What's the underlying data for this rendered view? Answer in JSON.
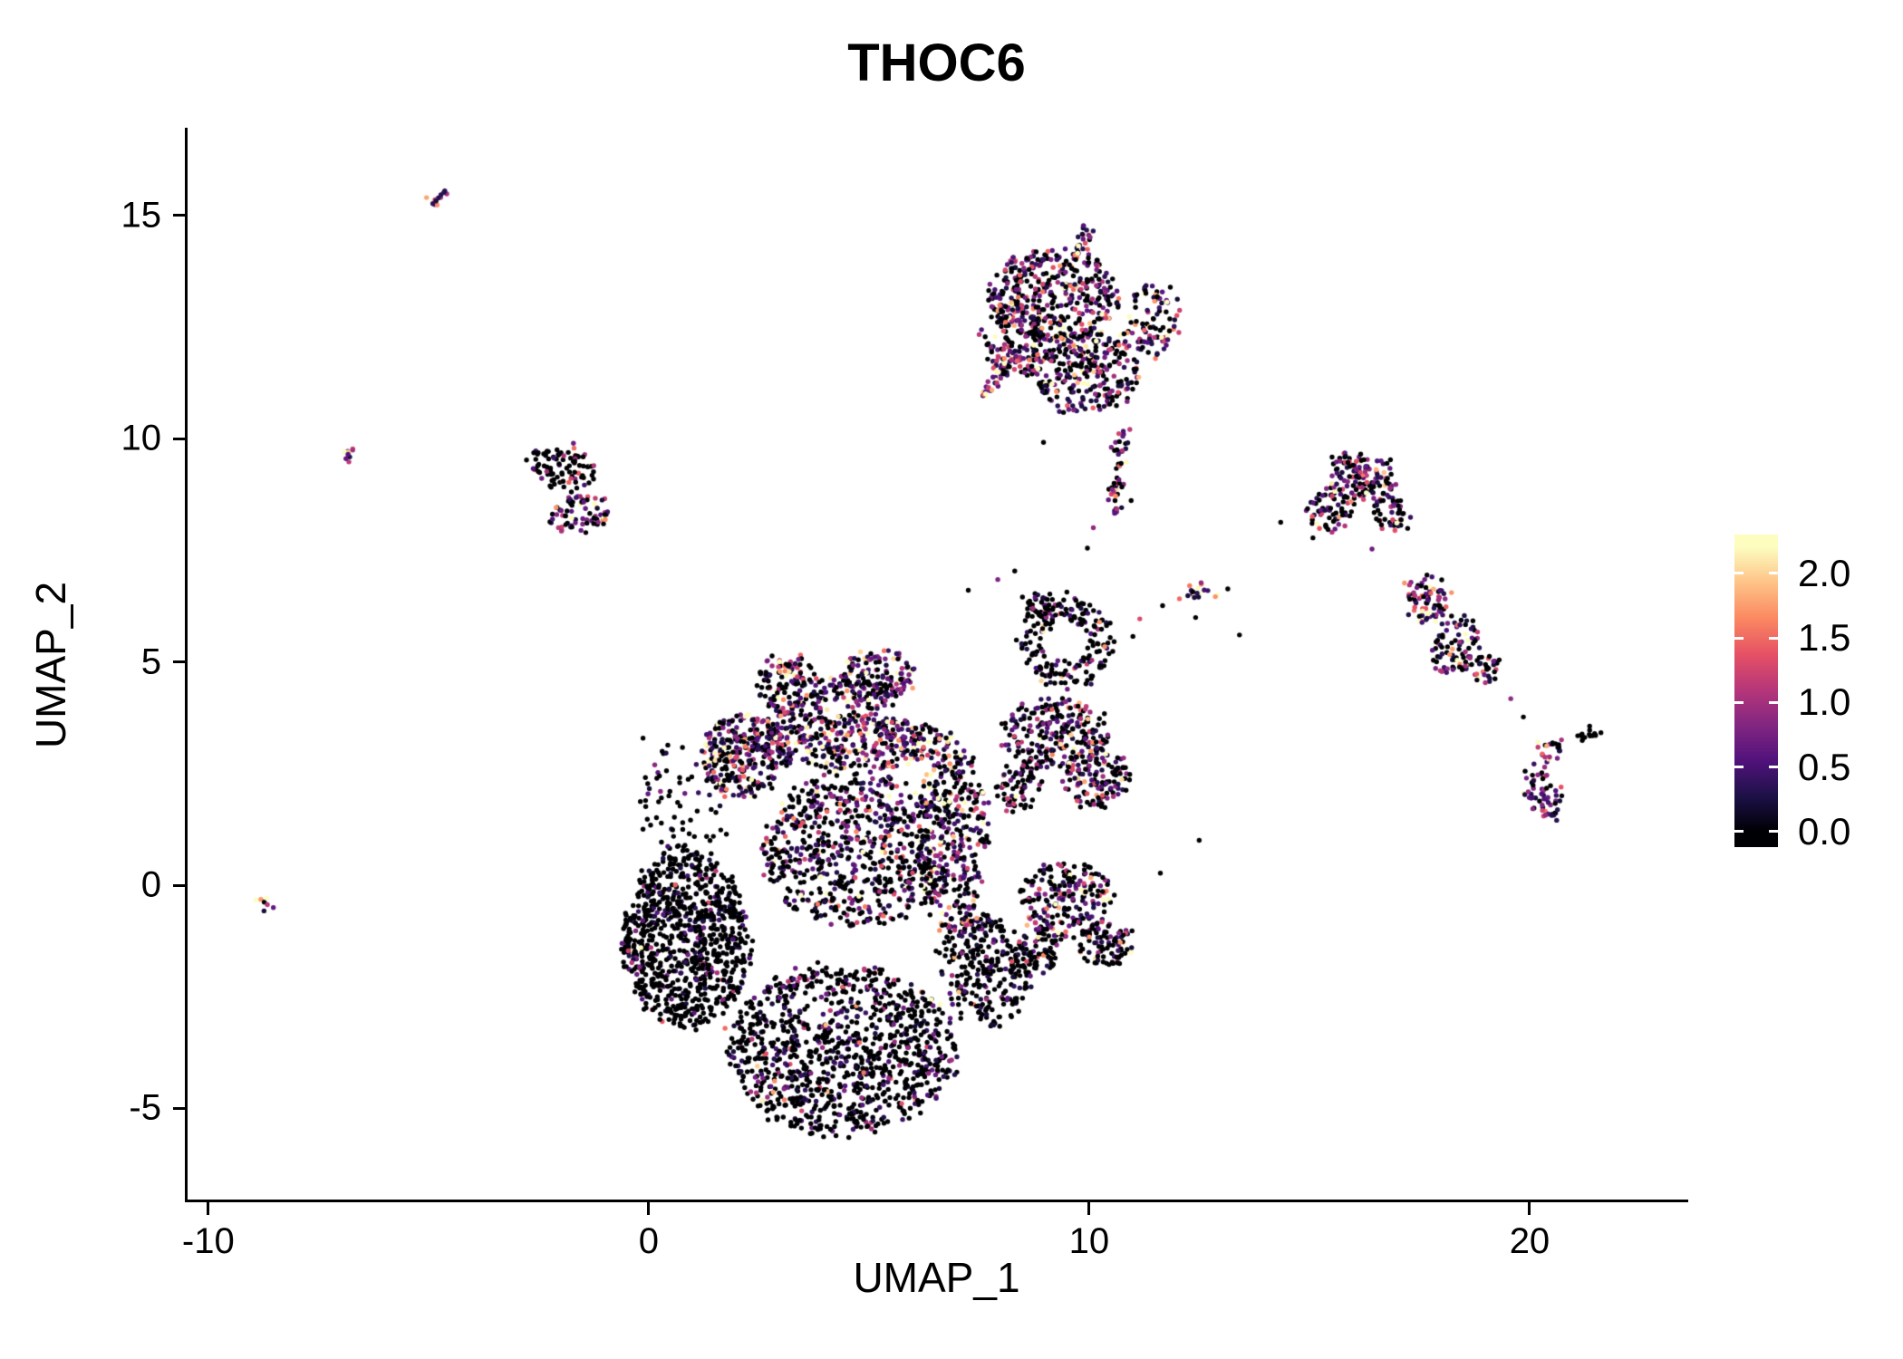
{
  "title": "THOC6",
  "colors": {
    "background": "#ffffff",
    "text": "#000000",
    "axis": "#000000"
  },
  "chart_data": {
    "type": "scatter",
    "title": "THOC6",
    "xlabel": "UMAP_1",
    "ylabel": "UMAP_2",
    "xlim": [
      -10.47,
      23.54
    ],
    "ylim": [
      -7.06,
      16.92
    ],
    "x_ticks": [
      "-10",
      "0",
      "10",
      "20"
    ],
    "y_ticks": [
      "-5",
      "0",
      "5",
      "10",
      "15"
    ],
    "grid": false,
    "point_radius_px": 2.7,
    "legend": {
      "position": "right",
      "ticks": [
        "2.0",
        "1.5",
        "1.0",
        "0.5",
        "0.0"
      ],
      "vmin": 0.0,
      "vmax": 2.2
    },
    "colormap": {
      "name": "magma",
      "stops": [
        "#000004",
        "#1d1147",
        "#51127c",
        "#822681",
        "#b63679",
        "#e65164",
        "#fb8861",
        "#fec287",
        "#fcfdbf"
      ]
    },
    "clusters": {
      "blobs": [
        {
          "name": "isolate-left-low",
          "cx": -8.72,
          "cy": -0.45,
          "rx": 0.14,
          "ry": 0.1,
          "rot": 0,
          "n": 7,
          "p0": 0.1,
          "m": 1.1
        },
        {
          "name": "left-island-top",
          "cx": -1.95,
          "cy": 9.35,
          "rx": 0.78,
          "ry": 0.5,
          "rot": -15,
          "n": 95,
          "p0": 0.72,
          "m": 0.8
        },
        {
          "name": "left-island-bottom",
          "cx": -1.55,
          "cy": 8.35,
          "rx": 0.82,
          "ry": 0.4,
          "rot": 8,
          "n": 75,
          "p0": 0.3,
          "m": 1.15
        },
        {
          "name": "top-main-1",
          "cx": 9.2,
          "cy": 13.2,
          "rx": 1.45,
          "ry": 1.05,
          "rot": 0,
          "n": 390,
          "p0": 0.38,
          "m": 0.9
        },
        {
          "name": "top-main-2",
          "cx": 10.0,
          "cy": 11.5,
          "rx": 1.15,
          "ry": 0.95,
          "rot": 20,
          "n": 270,
          "p0": 0.45,
          "m": 0.85
        },
        {
          "name": "top-main-3",
          "cx": 8.35,
          "cy": 12.2,
          "rx": 0.8,
          "ry": 0.9,
          "rot": 0,
          "n": 140,
          "p0": 0.4,
          "m": 0.95
        },
        {
          "name": "top-main-right",
          "cx": 11.45,
          "cy": 12.7,
          "rx": 0.55,
          "ry": 0.85,
          "rot": 0,
          "n": 90,
          "p0": 0.33,
          "m": 1.0
        },
        {
          "name": "right-upper-1",
          "cx": 16.15,
          "cy": 9.15,
          "rx": 0.8,
          "ry": 0.55,
          "rot": -10,
          "n": 135,
          "p0": 0.4,
          "m": 0.95
        },
        {
          "name": "right-upper-2",
          "cx": 15.45,
          "cy": 8.35,
          "rx": 0.5,
          "ry": 0.45,
          "rot": 0,
          "n": 60,
          "p0": 0.45,
          "m": 0.9
        },
        {
          "name": "right-upper-3",
          "cx": 16.85,
          "cy": 8.3,
          "rx": 0.45,
          "ry": 0.4,
          "rot": 0,
          "n": 45,
          "p0": 0.4,
          "m": 0.95
        },
        {
          "name": "right-mid-1",
          "cx": 17.7,
          "cy": 6.4,
          "rx": 0.5,
          "ry": 0.55,
          "rot": 0,
          "n": 80,
          "p0": 0.3,
          "m": 1.15
        },
        {
          "name": "right-mid-2",
          "cx": 18.35,
          "cy": 5.35,
          "rx": 0.55,
          "ry": 0.65,
          "rot": -20,
          "n": 85,
          "p0": 0.35,
          "m": 0.95
        },
        {
          "name": "right-mid-3",
          "cx": 18.95,
          "cy": 4.85,
          "rx": 0.35,
          "ry": 0.3,
          "rot": 0,
          "n": 30,
          "p0": 0.4,
          "m": 0.9
        },
        {
          "name": "right-low",
          "cx": 20.35,
          "cy": 2.1,
          "rx": 0.42,
          "ry": 0.72,
          "rot": 10,
          "n": 62,
          "p0": 0.35,
          "m": 1.0
        },
        {
          "name": "right-low-top",
          "cx": 20.5,
          "cy": 3.05,
          "rx": 0.3,
          "ry": 0.25,
          "rot": 0,
          "n": 20,
          "p0": 0.3,
          "m": 1.1
        },
        {
          "name": "orange-islet",
          "cx": 12.55,
          "cy": 6.55,
          "rx": 0.36,
          "ry": 0.16,
          "rot": 5,
          "n": 17,
          "p0": 0.08,
          "m": 1.4
        },
        {
          "name": "ring-knob",
          "cx": 8.9,
          "cy": 6.3,
          "rx": 0.35,
          "ry": 0.3,
          "rot": 0,
          "n": 30,
          "p0": 0.6,
          "m": 0.8
        },
        {
          "name": "mid-right-1",
          "cx": 9.2,
          "cy": 3.4,
          "rx": 1.2,
          "ry": 0.8,
          "rot": 0,
          "n": 240,
          "p0": 0.5,
          "m": 0.85
        },
        {
          "name": "mid-right-2",
          "cx": 10.2,
          "cy": 2.4,
          "rx": 0.75,
          "ry": 0.65,
          "rot": 0,
          "n": 130,
          "p0": 0.5,
          "m": 0.85
        },
        {
          "name": "mid-right-3",
          "cx": 8.35,
          "cy": 2.2,
          "rx": 0.55,
          "ry": 0.5,
          "rot": 0,
          "n": 70,
          "p0": 0.55,
          "m": 0.8
        },
        {
          "name": "low-right-1",
          "cx": 9.5,
          "cy": -0.35,
          "rx": 1.05,
          "ry": 0.85,
          "rot": 0,
          "n": 210,
          "p0": 0.5,
          "m": 0.9
        },
        {
          "name": "low-right-2",
          "cx": 10.35,
          "cy": -1.35,
          "rx": 0.6,
          "ry": 0.5,
          "rot": 0,
          "n": 90,
          "p0": 0.5,
          "m": 0.85
        },
        {
          "name": "low-right-3",
          "cx": 8.8,
          "cy": -1.5,
          "rx": 0.5,
          "ry": 0.45,
          "rot": 0,
          "n": 70,
          "p0": 0.55,
          "m": 0.85
        },
        {
          "name": "core-arc-left",
          "cx": 3.3,
          "cy": 4.4,
          "rx": 0.85,
          "ry": 0.7,
          "rot": -30,
          "n": 170,
          "p0": 0.42,
          "m": 0.95
        },
        {
          "name": "core-arc-right",
          "cx": 5.1,
          "cy": 4.6,
          "rx": 0.95,
          "ry": 0.6,
          "rot": 15,
          "n": 180,
          "p0": 0.42,
          "m": 0.95
        },
        {
          "name": "core-band",
          "cx": 4.6,
          "cy": 3.2,
          "rx": 2.3,
          "ry": 0.62,
          "rot": 0,
          "n": 400,
          "p0": 0.35,
          "m": 1.0
        },
        {
          "name": "core-left-mid",
          "cx": 2.2,
          "cy": 2.9,
          "rx": 1.0,
          "ry": 0.95,
          "rot": 0,
          "n": 270,
          "p0": 0.45,
          "m": 0.95
        },
        {
          "name": "core-left-dark",
          "cx": 0.85,
          "cy": -1.2,
          "rx": 1.45,
          "ry": 2.0,
          "rot": 0,
          "n": 880,
          "p0": 0.85,
          "m": 0.55
        },
        {
          "name": "core-left-pink-edge",
          "cx": -0.32,
          "cy": -1.55,
          "rx": 0.22,
          "ry": 0.55,
          "rot": 0,
          "n": 20,
          "p0": 0.3,
          "m": 1.25
        },
        {
          "name": "core-center",
          "cx": 4.7,
          "cy": 0.8,
          "rx": 2.2,
          "ry": 1.7,
          "rot": 0,
          "n": 720,
          "p0": 0.55,
          "m": 0.85
        },
        {
          "name": "core-column",
          "cx": 6.9,
          "cy": 1.0,
          "rx": 0.75,
          "ry": 2.2,
          "rot": 0,
          "n": 340,
          "p0": 0.45,
          "m": 0.9
        },
        {
          "name": "core-bottom",
          "cx": 4.4,
          "cy": -3.7,
          "rx": 2.6,
          "ry": 1.9,
          "rot": 0,
          "n": 1050,
          "p0": 0.74,
          "m": 0.6
        },
        {
          "name": "core-bottom-right",
          "cx": 7.6,
          "cy": -1.9,
          "rx": 0.95,
          "ry": 1.3,
          "rot": 15,
          "n": 270,
          "p0": 0.8,
          "m": 0.55
        },
        {
          "name": "core-topleft-sparse",
          "cx": 0.9,
          "cy": 1.9,
          "rx": 1.1,
          "ry": 1.3,
          "rot": 0,
          "n": 70,
          "p0": 0.8,
          "m": 0.6
        }
      ],
      "rings": [
        {
          "name": "black-ring",
          "cx": 9.45,
          "cy": 5.45,
          "r0": 0.5,
          "r1": 1.05,
          "n": 195,
          "p0": 0.72,
          "m": 0.7
        }
      ],
      "streaks": [
        {
          "name": "islet-topleft",
          "x1": -4.95,
          "y1": 15.25,
          "x2": -4.55,
          "y2": 15.55,
          "w": 0.07,
          "n": 14,
          "p0": 0.15,
          "m": 1.2
        },
        {
          "name": "islet-left",
          "x1": -6.95,
          "y1": 9.55,
          "x2": -6.72,
          "y2": 9.82,
          "w": 0.07,
          "n": 12,
          "p0": 0.15,
          "m": 1.35
        },
        {
          "name": "top-finger",
          "x1": 9.7,
          "y1": 14.05,
          "x2": 9.95,
          "y2": 14.75,
          "w": 0.09,
          "n": 26,
          "p0": 0.25,
          "m": 1.1
        },
        {
          "name": "top-left-streak",
          "x1": 7.55,
          "y1": 10.95,
          "x2": 8.35,
          "y2": 11.95,
          "w": 0.1,
          "n": 44,
          "p0": 0.22,
          "m": 1.2
        },
        {
          "name": "top-tail",
          "x1": 10.55,
          "y1": 8.3,
          "x2": 10.75,
          "y2": 10.3,
          "w": 0.09,
          "n": 48,
          "p0": 0.4,
          "m": 1.0
        },
        {
          "name": "far-right-streak",
          "x1": 21.15,
          "y1": 3.25,
          "x2": 21.6,
          "y2": 3.55,
          "w": 0.07,
          "n": 16,
          "p0": 0.85,
          "m": 0.7
        }
      ],
      "singles": [
        [
          -0.15,
          3.3,
          0
        ],
        [
          0.5,
          3.15,
          0
        ],
        [
          1.05,
          2.7,
          0.4
        ],
        [
          10.0,
          7.6,
          0
        ],
        [
          10.15,
          8.0,
          0.9
        ],
        [
          10.9,
          8.6,
          0
        ],
        [
          9.0,
          9.9,
          0
        ],
        [
          11.15,
          6.0,
          1.3
        ],
        [
          11.7,
          6.3,
          0
        ],
        [
          12.1,
          6.45,
          1.5
        ],
        [
          13.05,
          6.6,
          0
        ],
        [
          13.4,
          5.6,
          0
        ],
        [
          12.4,
          5.9,
          0
        ],
        [
          11.0,
          5.65,
          0
        ],
        [
          14.35,
          8.05,
          0
        ],
        [
          15.05,
          7.75,
          0
        ],
        [
          16.3,
          7.5,
          0.7
        ],
        [
          19.6,
          4.2,
          0.9
        ],
        [
          19.85,
          3.85,
          0
        ],
        [
          7.3,
          6.6,
          0
        ],
        [
          7.9,
          6.9,
          0.8
        ],
        [
          8.3,
          7.0,
          0
        ],
        [
          0.3,
          -3.0,
          1.4
        ],
        [
          0.12,
          -2.8,
          1.2
        ],
        [
          1.75,
          -3.25,
          1.5
        ],
        [
          12.55,
          1.05,
          0
        ],
        [
          11.6,
          0.3,
          0
        ]
      ]
    }
  }
}
